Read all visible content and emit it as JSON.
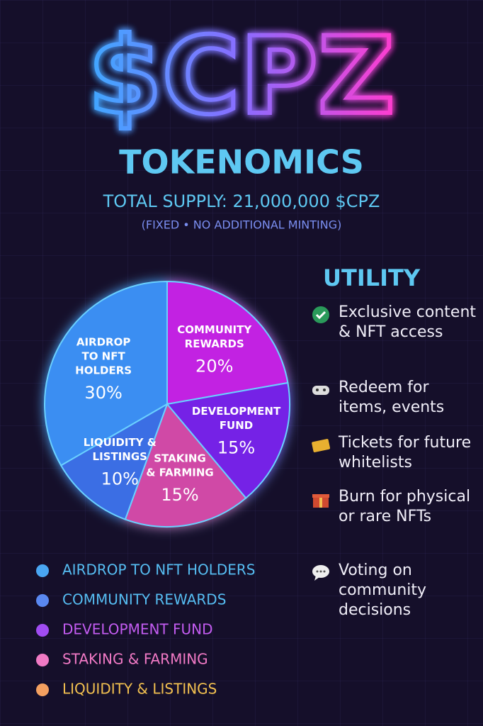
{
  "header": {
    "title": "$CPZ",
    "subtitle": "TOKENOMICS",
    "supply": "TOTAL SUPPLY: 21,000,000 $CPZ",
    "note": "(FIXED • NO ADDITIONAL MINTING)"
  },
  "chart_data": {
    "type": "pie",
    "categories": [
      "AIRDROP TO NFT HOLDERS",
      "COMMUNITY REWARDS",
      "DEVELOPMENT FUND",
      "STAKING & FARMING",
      "LIQUIDITY & LISTINGS"
    ],
    "slice_labels": [
      [
        "AIRDROP",
        "TO NFT",
        "HOLDERS"
      ],
      [
        "COMMUNITY",
        "REWARDS"
      ],
      [
        "DEVELOPMENT",
        "FUND"
      ],
      [
        "STAKING",
        "& FARMING"
      ],
      [
        "LIQUIDITY &",
        "LISTINGS"
      ]
    ],
    "values": [
      30,
      20,
      15,
      15,
      10
    ],
    "value_labels": [
      "30%",
      "20%",
      "15%",
      "15%",
      "10%"
    ],
    "colors": [
      "#3a8ef2",
      "#c224e2",
      "#7424e6",
      "#d04aa6",
      "#3a6ee4"
    ],
    "legend_colors": [
      "#4aa6f2",
      "#5a88f0",
      "#a04cf2",
      "#f07ac4",
      "#f4a060"
    ],
    "legend_text_colors": [
      "#56bdf2",
      "#56bdf2",
      "#c45cf2",
      "#f27ac6",
      "#f2c050"
    ]
  },
  "utility": {
    "title": "UTILITY",
    "items": [
      "Exclusive content & NFT access",
      "Redeem for items, events",
      "Tickets for future whitelists",
      "Burn for physical or rare NFTs",
      "Voting on community decisions"
    ]
  }
}
